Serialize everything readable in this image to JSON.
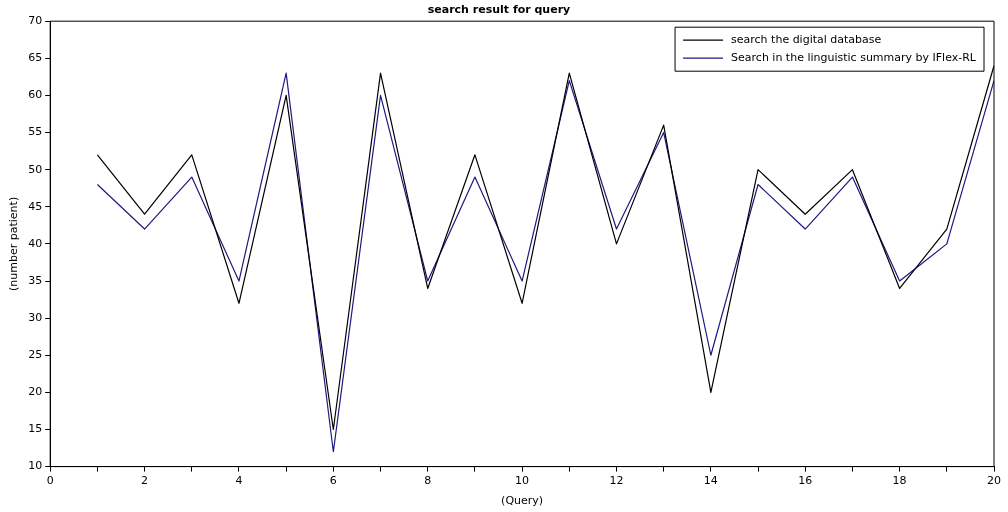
{
  "chart_data": {
    "type": "line",
    "title": "search result for query",
    "xlabel": "(Query)",
    "ylabel": "(number patient)",
    "x": [
      1,
      2,
      3,
      4,
      5,
      6,
      7,
      8,
      9,
      10,
      11,
      12,
      13,
      14,
      15,
      16,
      17,
      18,
      19,
      20
    ],
    "series": [
      {
        "name": "search the digital database",
        "color": "#000000",
        "values": [
          52,
          44,
          52,
          32,
          60,
          15,
          63,
          34,
          52,
          32,
          63,
          40,
          56,
          20,
          50,
          44,
          50,
          34,
          42,
          64
        ]
      },
      {
        "name": "Search in the linguistic summary by IFlex-RL",
        "color": "#1a1a80",
        "values": [
          48,
          42,
          49,
          35,
          63,
          12,
          60,
          35,
          49,
          35,
          62,
          42,
          55,
          25,
          48,
          42,
          49,
          35,
          40,
          62
        ]
      }
    ],
    "xlim": [
      0,
      20
    ],
    "ylim": [
      10,
      70
    ],
    "xticks": [
      0,
      {
        "value": 1,
        "label": null
      },
      2,
      {
        "value": 3,
        "label": null
      },
      4,
      {
        "value": 5,
        "label": null
      },
      6,
      {
        "value": 7,
        "label": null
      },
      8,
      {
        "value": 9,
        "label": null
      },
      10,
      {
        "value": 11,
        "label": null
      },
      12,
      {
        "value": 13,
        "label": null
      },
      14,
      {
        "value": 15,
        "label": null
      },
      16,
      {
        "value": 17,
        "label": null
      },
      18,
      {
        "value": 19,
        "label": null
      },
      20
    ],
    "yticks": [
      10,
      15,
      20,
      25,
      30,
      35,
      40,
      45,
      50,
      55,
      60,
      65,
      70
    ],
    "grid": false,
    "legend": "top right",
    "marker": "none",
    "line_style": "solid"
  }
}
